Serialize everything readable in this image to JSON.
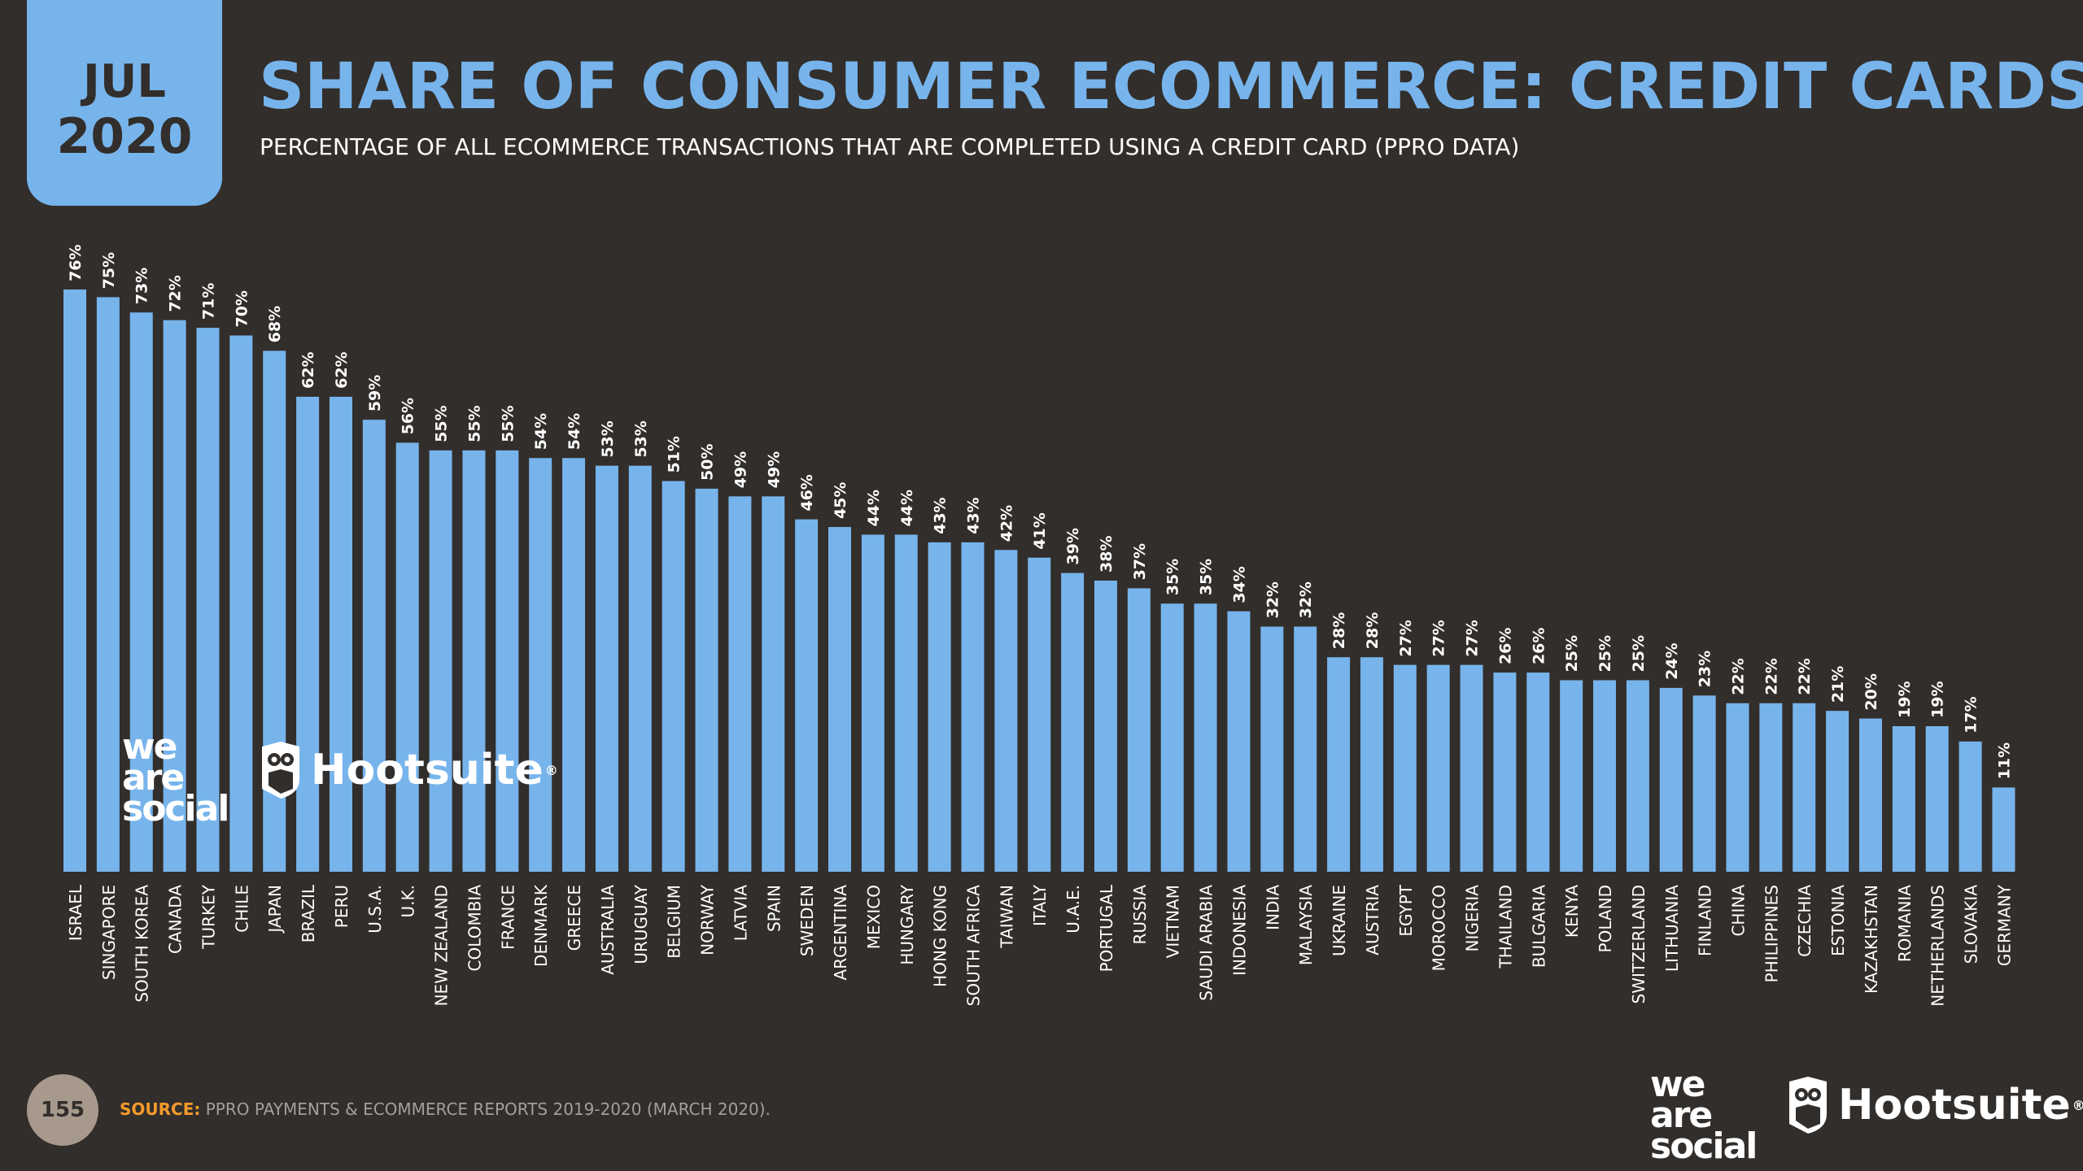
{
  "date_tab": {
    "month": "JUL",
    "year": "2020"
  },
  "title": "SHARE OF CONSUMER ECOMMERCE: CREDIT CARDS",
  "subtitle": "PERCENTAGE OF ALL ECOMMERCE TRANSACTIONS THAT ARE COMPLETED USING A CREDIT CARD (PPRO DATA)",
  "footer": {
    "page_number": "155",
    "source_label": "SOURCE:",
    "source_text": " PPRO PAYMENTS & ECOMMERCE REPORTS 2019-2020 (MARCH 2020)."
  },
  "logos": {
    "we_are_social": [
      "we",
      "are",
      "social"
    ],
    "hootsuite": "Hootsuite",
    "registered": "®"
  },
  "colors": {
    "background": "#322e2b",
    "accent": "#77b4ec",
    "source_label": "#f39a2c",
    "badge": "#a79a8c"
  },
  "chart_data": {
    "type": "bar",
    "categories": [
      "ISRAEL",
      "SINGAPORE",
      "SOUTH KOREA",
      "CANADA",
      "TURKEY",
      "CHILE",
      "JAPAN",
      "BRAZIL",
      "PERU",
      "U.S.A.",
      "U.K.",
      "NEW ZEALAND",
      "COLOMBIA",
      "FRANCE",
      "DENMARK",
      "GREECE",
      "AUSTRALIA",
      "URUGUAY",
      "BELGIUM",
      "NORWAY",
      "LATVIA",
      "SPAIN",
      "SWEDEN",
      "ARGENTINA",
      "MEXICO",
      "HUNGARY",
      "HONG KONG",
      "SOUTH AFRICA",
      "TAIWAN",
      "ITALY",
      "U.A.E.",
      "PORTUGAL",
      "RUSSIA",
      "VIETNAM",
      "SAUDI ARABIA",
      "INDONESIA",
      "INDIA",
      "MALAYSIA",
      "UKRAINE",
      "AUSTRIA",
      "EGYPT",
      "MOROCCO",
      "NIGERIA",
      "THAILAND",
      "BULGARIA",
      "KENYA",
      "POLAND",
      "SWITZERLAND",
      "LITHUANIA",
      "FINLAND",
      "CHINA",
      "PHILIPPINES",
      "CZECHIA",
      "ESTONIA",
      "KAZAKHSTAN",
      "ROMANIA",
      "NETHERLANDS",
      "SLOVAKIA",
      "GERMANY"
    ],
    "values": [
      76,
      75,
      73,
      72,
      71,
      70,
      68,
      62,
      62,
      59,
      56,
      55,
      55,
      55,
      54,
      54,
      53,
      53,
      51,
      50,
      49,
      49,
      46,
      45,
      44,
      44,
      43,
      43,
      42,
      41,
      39,
      38,
      37,
      35,
      35,
      34,
      32,
      32,
      28,
      28,
      27,
      27,
      27,
      26,
      26,
      25,
      25,
      25,
      24,
      23,
      22,
      22,
      22,
      21,
      20,
      19,
      19,
      17,
      11
    ],
    "value_suffix": "%",
    "ylim": [
      0,
      76
    ],
    "grid": false,
    "legend": "none",
    "bar_color": "#77b4ec"
  }
}
